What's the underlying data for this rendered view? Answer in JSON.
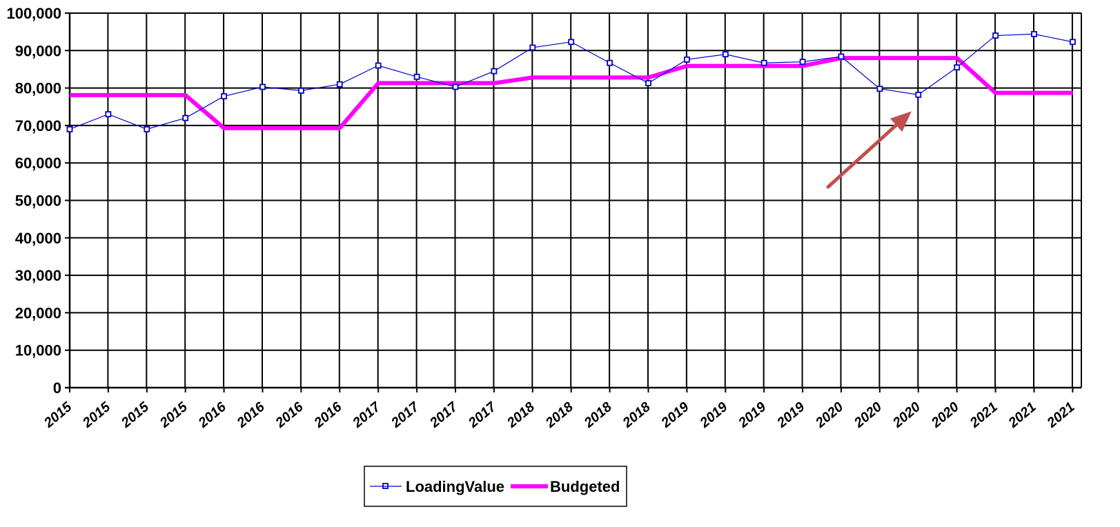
{
  "chart_data": {
    "type": "line",
    "categories": [
      "2015",
      "2015",
      "2015",
      "2015",
      "2016",
      "2016",
      "2016",
      "2016",
      "2017",
      "2017",
      "2017",
      "2017",
      "2018",
      "2018",
      "2018",
      "2018",
      "2019",
      "2019",
      "2019",
      "2019",
      "2020",
      "2020",
      "2020",
      "2020",
      "2021",
      "2021",
      "2021"
    ],
    "y_ticks": [
      "0",
      "10,000",
      "20,000",
      "30,000",
      "40,000",
      "50,000",
      "60,000",
      "70,000",
      "80,000",
      "90,000",
      "100,000"
    ],
    "ylim": [
      0,
      100000
    ],
    "grid": true,
    "legend_position": "bottom-center",
    "series": [
      {
        "name": "LoadingValue",
        "color": "#0000cc",
        "marker": "square",
        "values": [
          69000,
          73000,
          69000,
          72000,
          77800,
          80300,
          79300,
          81000,
          86000,
          83000,
          80300,
          84500,
          90800,
          92300,
          86700,
          81300,
          87600,
          89000,
          86700,
          87000,
          88400,
          79800,
          78200,
          85500,
          94000,
          94400,
          92300
        ]
      },
      {
        "name": "Budgeted",
        "color": "#ff00ff",
        "marker": "none",
        "values": [
          78100,
          78100,
          78100,
          78100,
          69300,
          69300,
          69300,
          69300,
          81300,
          81300,
          81300,
          81300,
          82800,
          82800,
          82800,
          82800,
          85900,
          85900,
          85900,
          85900,
          88000,
          88000,
          88000,
          88000,
          78700,
          78700,
          78700
        ]
      }
    ],
    "annotation": {
      "type": "arrow",
      "color": "#c0504d",
      "points_to_category_index": 22,
      "points_to_series": "LoadingValue"
    }
  }
}
